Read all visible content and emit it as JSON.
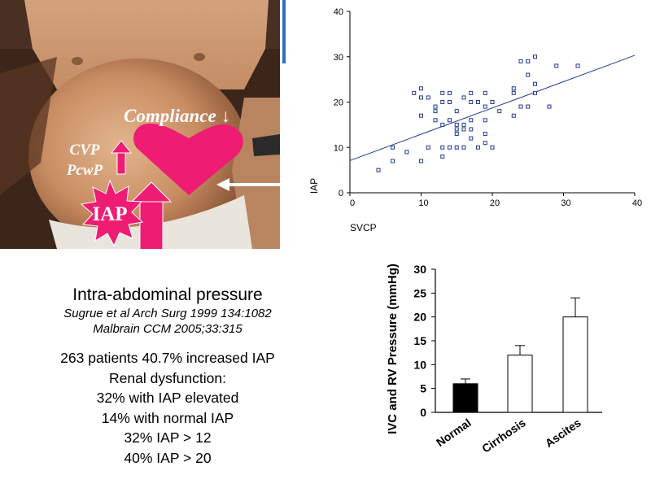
{
  "photo": {
    "compliance_label": "Compliance ↓",
    "cvp_label": "CVP",
    "pcwp_label": "PcwP",
    "iap_label": "IAP"
  },
  "text_block": {
    "title": "Intra-abdominal pressure",
    "citation_1": "Sugrue et al Arch Surg 1999  134:1082",
    "citation_2": "Malbrain CCM 2005;33:315",
    "stat_1": "263 patients   40.7% increased IAP",
    "stat_2": "Renal dysfunction:",
    "stat_3": "32%  with IAP elevated",
    "stat_4": "14% with normal IAP",
    "stat_5": "32% IAP > 12",
    "stat_6": "40% IAP > 20"
  },
  "chart_data": [
    {
      "type": "scatter",
      "title": "",
      "xlabel": "SVCP",
      "ylabel": "IAP",
      "xlim": [
        0,
        40
      ],
      "ylim": [
        0,
        40
      ],
      "xticks": [
        "0",
        "10",
        "20",
        "30",
        "40"
      ],
      "yticks": [
        "0",
        "10",
        "20",
        "30",
        "40"
      ],
      "grid": false,
      "marker_color": "#1f3a93",
      "points": [
        [
          4,
          5
        ],
        [
          6,
          7
        ],
        [
          6,
          10
        ],
        [
          8,
          9
        ],
        [
          9,
          22
        ],
        [
          10,
          21
        ],
        [
          10,
          23
        ],
        [
          10,
          17
        ],
        [
          10,
          7
        ],
        [
          11,
          10
        ],
        [
          11,
          21
        ],
        [
          12,
          19
        ],
        [
          12,
          18
        ],
        [
          12,
          16
        ],
        [
          13,
          22
        ],
        [
          13,
          20
        ],
        [
          13,
          15
        ],
        [
          13,
          10
        ],
        [
          13,
          8
        ],
        [
          14,
          22
        ],
        [
          14,
          20
        ],
        [
          14,
          16
        ],
        [
          14,
          10
        ],
        [
          15,
          18
        ],
        [
          15,
          15
        ],
        [
          15,
          14
        ],
        [
          15,
          13
        ],
        [
          15,
          10
        ],
        [
          16,
          21
        ],
        [
          16,
          15
        ],
        [
          16,
          14
        ],
        [
          16,
          10
        ],
        [
          17,
          22
        ],
        [
          17,
          20
        ],
        [
          17,
          16
        ],
        [
          17,
          14
        ],
        [
          17,
          12
        ],
        [
          18,
          20
        ],
        [
          18,
          10
        ],
        [
          19,
          22
        ],
        [
          19,
          19
        ],
        [
          19,
          16
        ],
        [
          19,
          13
        ],
        [
          19,
          11
        ],
        [
          20,
          20
        ],
        [
          20,
          10
        ],
        [
          21,
          18
        ],
        [
          23,
          23
        ],
        [
          23,
          22
        ],
        [
          23,
          17
        ],
        [
          24,
          29
        ],
        [
          24,
          19
        ],
        [
          25,
          29
        ],
        [
          25,
          26
        ],
        [
          25,
          19
        ],
        [
          26,
          30
        ],
        [
          26,
          24
        ],
        [
          26,
          22
        ],
        [
          28,
          19
        ],
        [
          29,
          28
        ],
        [
          32,
          28
        ]
      ],
      "trendline": {
        "x": [
          0,
          40
        ],
        "y": [
          7.1,
          30.3
        ]
      }
    },
    {
      "type": "bar",
      "title": "",
      "xlabel": "",
      "ylabel": "IVC and RV Pressure (mmHg)",
      "ylim": [
        0,
        30
      ],
      "yticks": [
        "0",
        "5",
        "10",
        "15",
        "20",
        "25",
        "30"
      ],
      "categories": [
        "Normal",
        "Cirrhosis",
        "Ascites"
      ],
      "values": [
        6,
        12,
        20
      ],
      "errors": [
        1,
        2,
        4
      ],
      "bar_colors": [
        "#000000",
        "#ffffff",
        "#ffffff"
      ],
      "grid": false
    }
  ]
}
